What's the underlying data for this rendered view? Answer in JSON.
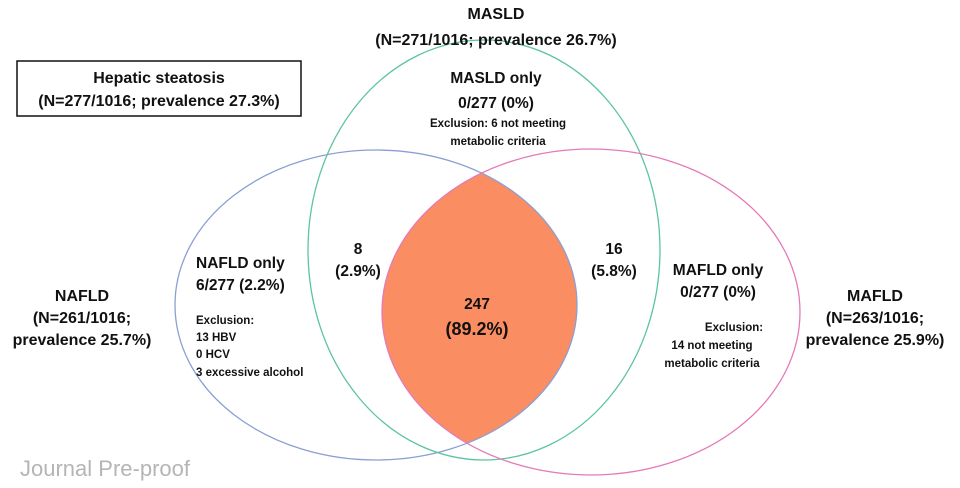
{
  "colors": {
    "nafld_outline": "#8a9fd4",
    "masld_outline": "#5cc4a0",
    "mafld_outline": "#e47ab8",
    "intersection_fill": "#fb8d62"
  },
  "watermark": "Journal Pre-proof",
  "hepatic_steatosis": {
    "title": "Hepatic steatosis",
    "detail": "(N=277/1016; prevalence 27.3%)"
  },
  "masld": {
    "label": "MASLD",
    "detail": "(N=271/1016; prevalence 26.7%)",
    "only_label": "MASLD only",
    "only_value": "0/277 (0%)",
    "exclusion": [
      "Exclusion: 6 not meeting",
      "metabolic criteria"
    ]
  },
  "nafld": {
    "label": "NAFLD",
    "detail": [
      "(N=261/1016;",
      "prevalence 25.7%)"
    ],
    "only_label": "NAFLD only",
    "only_value": "6/277 (2.2%)",
    "exclusion": [
      "Exclusion:",
      "13 HBV",
      "0 HCV",
      "3 excessive alcohol"
    ]
  },
  "mafld": {
    "label": "MAFLD",
    "detail": [
      "(N=263/1016;",
      "prevalence 25.9%)"
    ],
    "only_label": "MAFLD only",
    "only_value": "0/277 (0%)",
    "exclusion": [
      "Exclusion:",
      "14 not meeting",
      "metabolic criteria"
    ]
  },
  "overlaps": {
    "nafld_masld": {
      "count": "8",
      "percent": "(2.9%)"
    },
    "masld_mafld": {
      "count": "16",
      "percent": "(5.8%)"
    },
    "all_three": {
      "count": "247",
      "percent": "(89.2%)"
    }
  }
}
